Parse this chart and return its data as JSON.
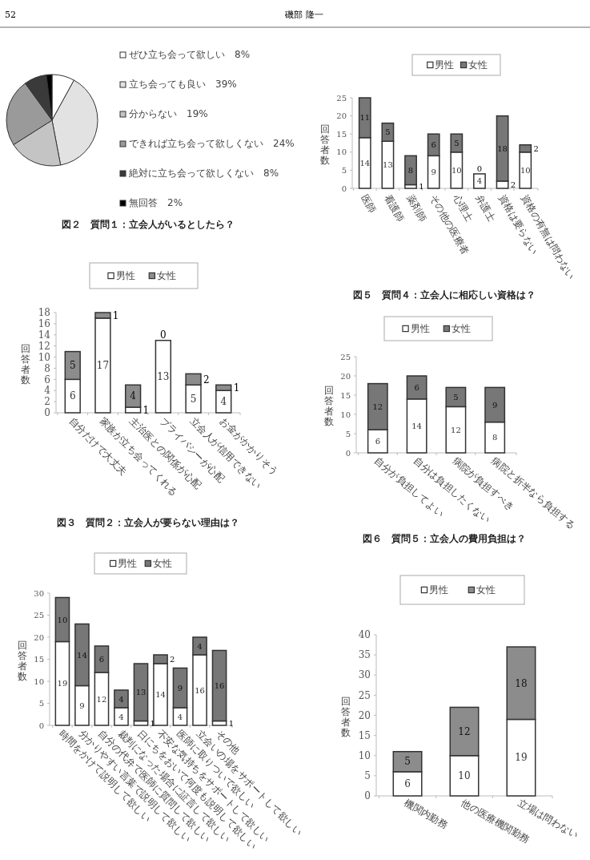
{
  "chart_data": [
    {
      "type": "pie",
      "title": "図２　質問１：立会人がいるとしたら？",
      "annotations": [
        "52",
        "磯部 隆一"
      ],
      "categories": [
        "ぜひ立ち会って欲しい",
        "立ち会っても良い",
        "分からない",
        "できれば立ち会って欲しくない",
        "絶対に立ち会って欲しくない",
        "無回答"
      ],
      "values": [
        8,
        39,
        19,
        24,
        8,
        2
      ],
      "value_labels": [
        "8%",
        "39%",
        "19%",
        "24%",
        "8%",
        "2%"
      ],
      "colors": [
        "#ffffff",
        "#e2e2e2",
        "#c4c4c4",
        "#9a9a9a",
        "#3a3a3a",
        "#000000"
      ],
      "legend": "right"
    },
    {
      "type": "bar",
      "stacked": true,
      "title": "図５　質問４：立会人に相応しい資格は？",
      "ylabel": "回答者数",
      "categories": [
        "医師",
        "看護師",
        "薬剤師",
        "その他の医療者",
        "心理士",
        "弁護士",
        "資格は要らない",
        "資格の有無は問わない"
      ],
      "series": [
        {
          "name": "男性",
          "color": "#ffffff",
          "values": [
            14,
            13,
            1,
            9,
            10,
            4,
            2,
            10
          ]
        },
        {
          "name": "女性",
          "color": "#777777",
          "values": [
            11,
            5,
            8,
            6,
            5,
            0,
            18,
            2
          ]
        }
      ],
      "ylim": [
        0,
        25
      ],
      "yticks": [
        0,
        5,
        10,
        15,
        20,
        25
      ],
      "data_labels": true,
      "legend": "top",
      "grid": false
    },
    {
      "type": "bar",
      "stacked": true,
      "title": "図３　質問２：立会人が要らない理由は？",
      "ylabel": "回答者数",
      "categories": [
        "自分だけで大丈夫",
        "家族が立ち会ってくれる",
        "主治医との関係が心配",
        "プライバシーが心配",
        "立会人が信用できない",
        "お金がかかりそう"
      ],
      "series": [
        {
          "name": "男性",
          "color": "#ffffff",
          "values": [
            6,
            17,
            1,
            13,
            5,
            4
          ]
        },
        {
          "name": "女性",
          "color": "#8c8c8c",
          "values": [
            5,
            1,
            4,
            0,
            2,
            1
          ]
        }
      ],
      "ylim": [
        0,
        18
      ],
      "yticks": [
        0,
        2,
        4,
        6,
        8,
        10,
        12,
        14,
        16,
        18
      ],
      "data_labels": true,
      "legend": "top",
      "grid": false
    },
    {
      "type": "bar",
      "stacked": true,
      "title": "図６　質問５：立会人の費用負担は？",
      "ylabel": "回答者数",
      "categories": [
        "自分が負担してよい",
        "自分は負担したくない",
        "病院が負担すべき",
        "病院と折半なら負担する"
      ],
      "series": [
        {
          "name": "男性",
          "color": "#ffffff",
          "values": [
            6,
            14,
            12,
            8
          ]
        },
        {
          "name": "女性",
          "color": "#777777",
          "values": [
            12,
            6,
            5,
            9
          ]
        }
      ],
      "ylim": [
        0,
        25
      ],
      "yticks": [
        0,
        5,
        10,
        15,
        20,
        25
      ],
      "data_labels": true,
      "legend": "top",
      "grid": false
    },
    {
      "type": "bar",
      "stacked": true,
      "ylabel": "回答者数",
      "categories": [
        "時間をかけて説明して欲しい",
        "分かりやすい言葉で説明して欲しい",
        "自分の代弁で医師に質問して欲しい",
        "裁判になった場合に証言して欲しい",
        "日にちをおいて何度も説明して欲しい",
        "不安な気持ちをサポートして欲しい",
        "医師に取りついで欲しい",
        "立会いの場をサポートして欲しい",
        "その他"
      ],
      "series": [
        {
          "name": "男性",
          "color": "#ffffff",
          "values": [
            19,
            9,
            12,
            4,
            1,
            14,
            4,
            16,
            1
          ]
        },
        {
          "name": "女性",
          "color": "#777777",
          "values": [
            10,
            14,
            6,
            4,
            13,
            2,
            9,
            4,
            16
          ]
        }
      ],
      "ylim": [
        0,
        30
      ],
      "yticks": [
        0,
        5,
        10,
        15,
        20,
        25,
        30
      ],
      "data_labels": true,
      "legend": "top",
      "grid": false
    },
    {
      "type": "bar",
      "stacked": true,
      "ylabel": "回答者数",
      "categories": [
        "機関内勤務",
        "他の医療機関勤務",
        "立場は問わない"
      ],
      "series": [
        {
          "name": "男性",
          "color": "#ffffff",
          "values": [
            6,
            10,
            19
          ]
        },
        {
          "name": "女性",
          "color": "#8c8c8c",
          "values": [
            5,
            12,
            18
          ]
        }
      ],
      "ylim": [
        0,
        40
      ],
      "yticks": [
        0,
        5,
        10,
        15,
        20,
        25,
        30,
        35,
        40
      ],
      "data_labels": true,
      "legend": "top",
      "grid": false
    }
  ]
}
